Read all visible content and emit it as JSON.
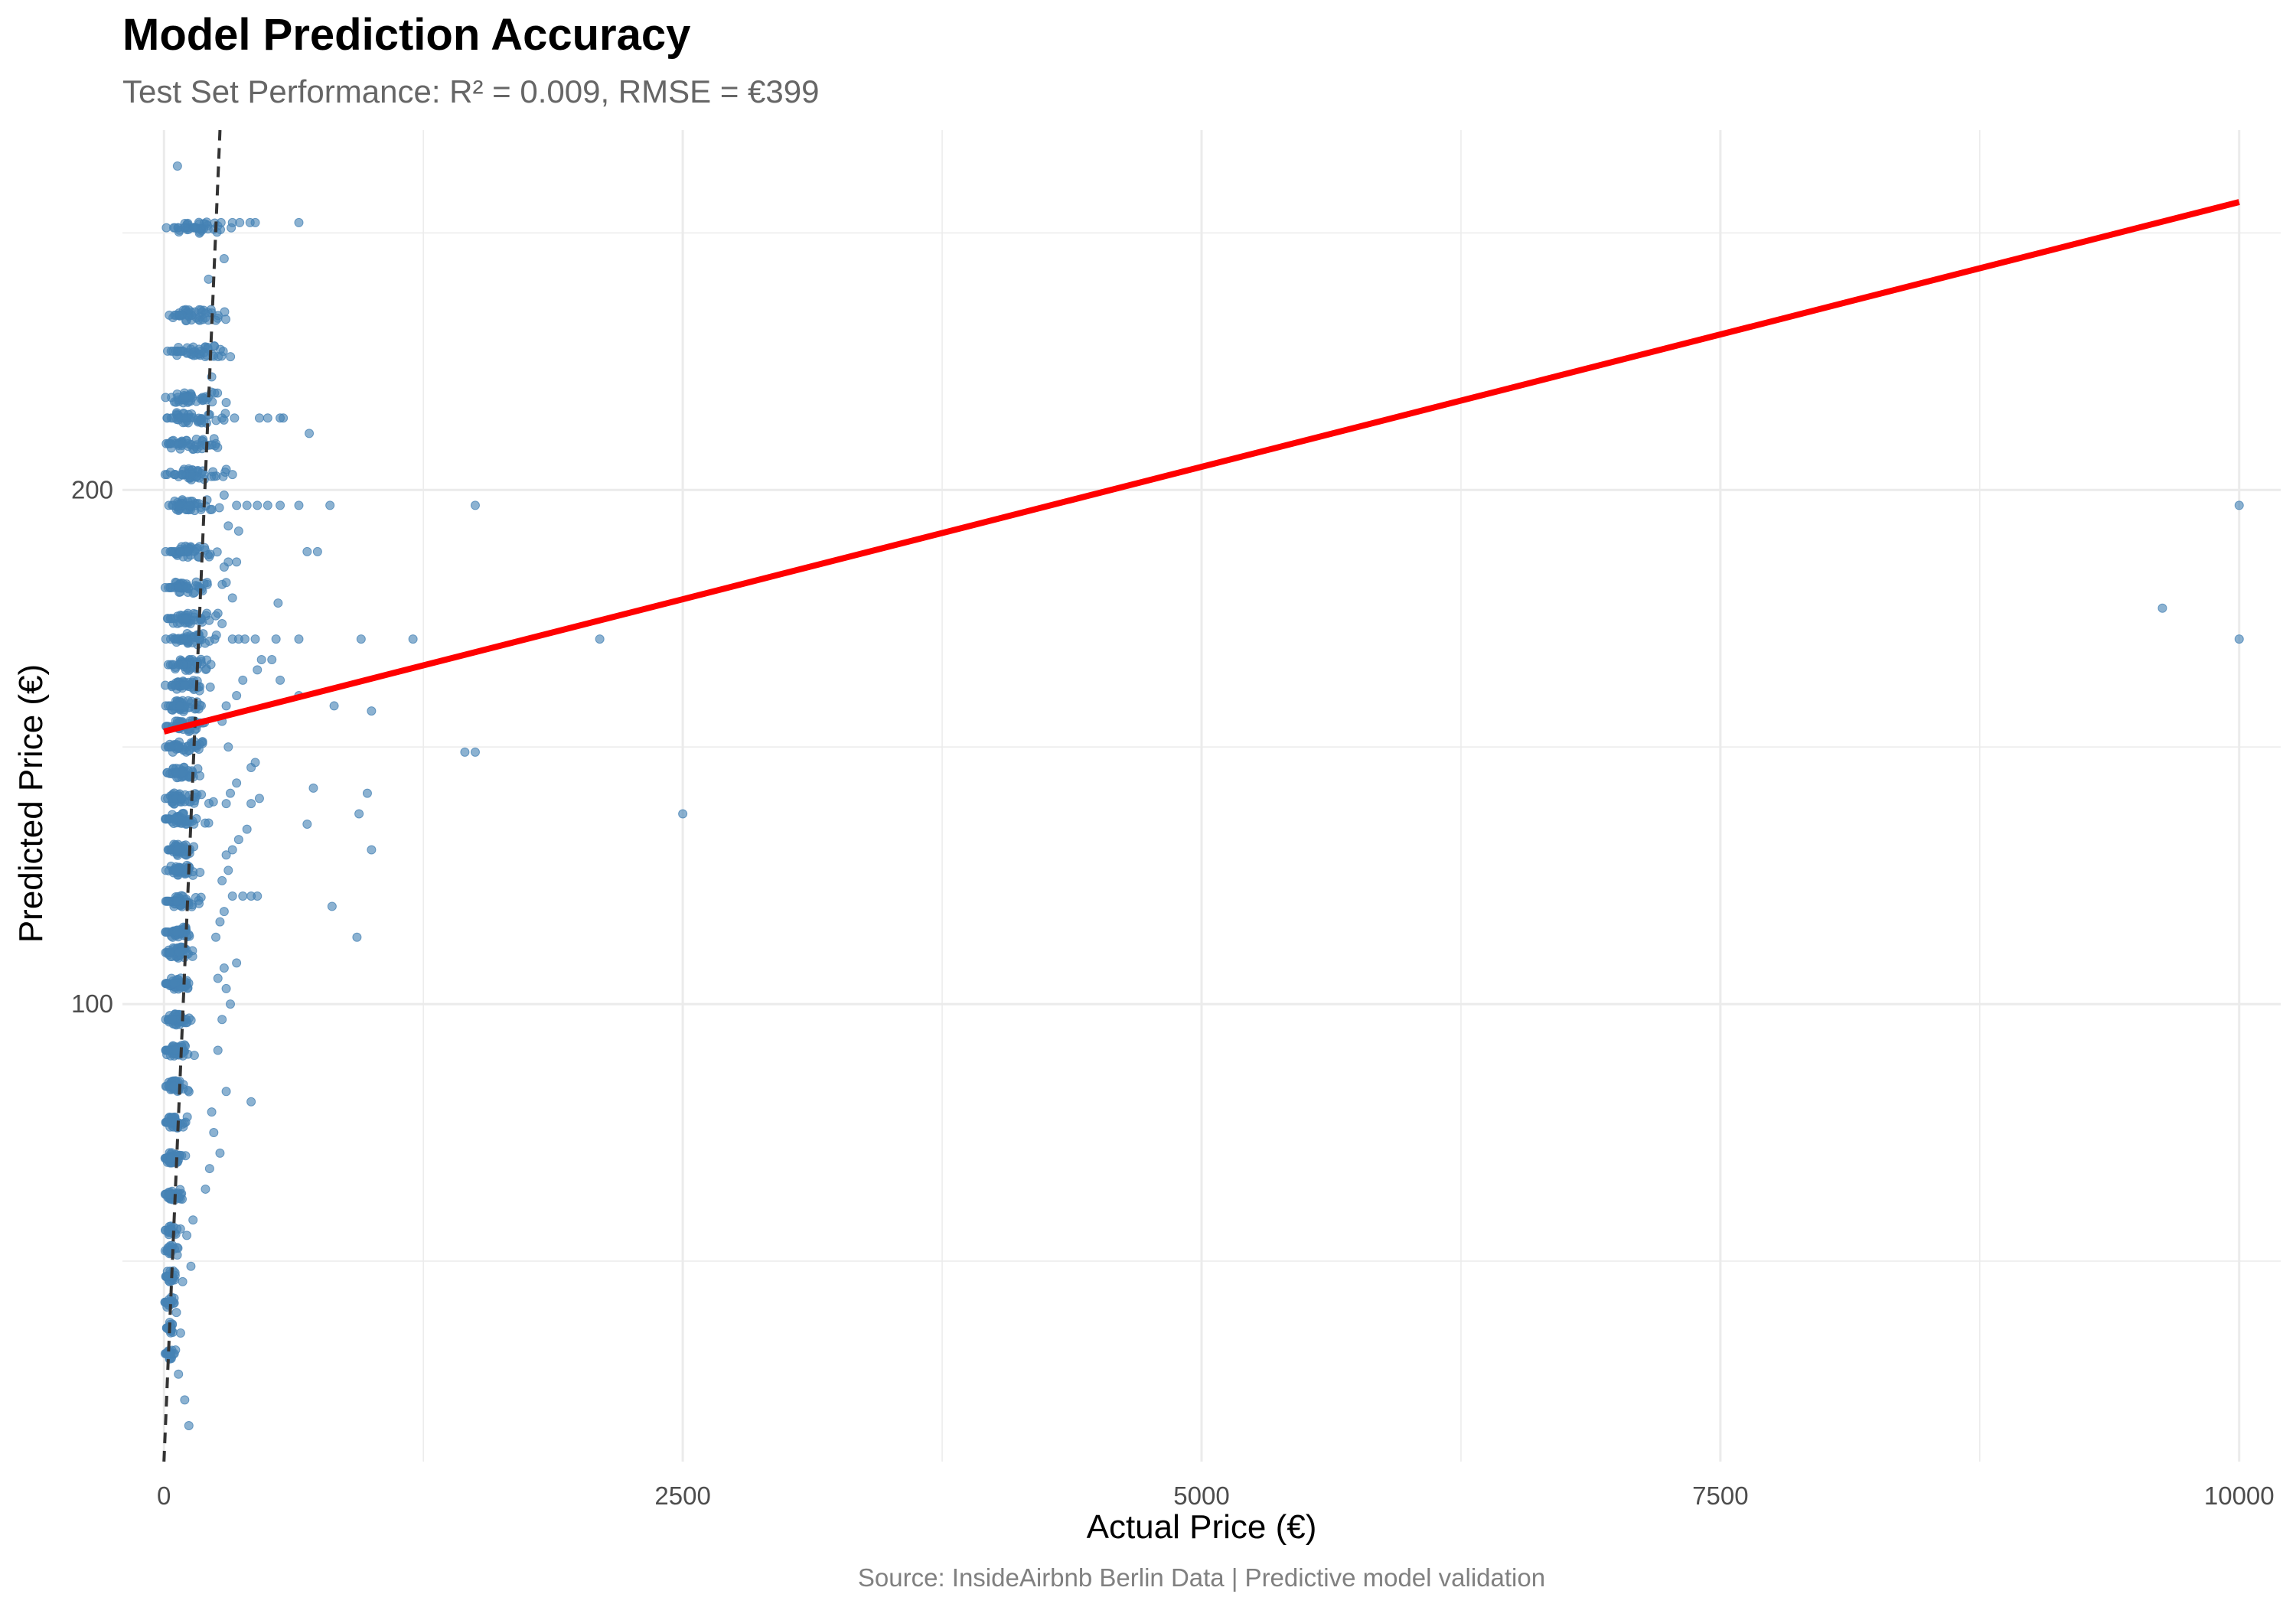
{
  "chart_data": {
    "type": "scatter",
    "title": "Model Prediction Accuracy",
    "subtitle": "Test Set Performance: R² = 0.009, RMSE = €399",
    "xlabel": "Actual Price (€)",
    "ylabel": "Predicted Price (€)",
    "caption": "Source: InsideAirbnb Berlin Data | Predictive model validation",
    "xlim": [
      -200,
      10200
    ],
    "ylim": [
      11,
      270
    ],
    "x_ticks": [
      0,
      2500,
      5000,
      7500,
      10000
    ],
    "x_tick_labels": [
      "0",
      "2500",
      "5000",
      "7500",
      "10000"
    ],
    "y_ticks": [
      100,
      200
    ],
    "y_tick_labels": [
      "100",
      "200"
    ],
    "grid": true,
    "legend": "none",
    "colors": {
      "points": "#4682B4",
      "fit_line": "#FF0000",
      "reference_line": "#333333",
      "grid": "#EBEBEB"
    },
    "reference_line": {
      "type": "identity",
      "style": "dashed",
      "points": [
        [
          0,
          11
        ],
        [
          270,
          270
        ]
      ]
    },
    "fit_line": {
      "type": "linear",
      "points": [
        [
          0,
          153
        ],
        [
          10000,
          256
        ]
      ]
    },
    "prediction_levels": [
      251,
      234,
      227,
      218,
      214,
      209,
      203,
      197,
      188,
      181,
      175,
      171,
      166,
      162,
      158,
      154,
      150,
      145,
      140,
      136,
      130,
      126,
      120,
      114,
      110,
      104,
      97,
      91,
      84,
      77,
      70,
      63,
      56,
      52,
      47,
      42,
      37,
      32
    ],
    "series": [
      {
        "points": [
          [
            65,
            263
          ],
          [
            650,
            252
          ],
          [
            440,
            252
          ],
          [
            330,
            252
          ],
          [
            275,
            252
          ],
          [
            365,
            252
          ],
          [
            415,
            252
          ],
          [
            290,
            245
          ],
          [
            215,
            241
          ],
          [
            120,
            235
          ],
          [
            250,
            233
          ],
          [
            240,
            226
          ],
          [
            230,
            222
          ],
          [
            700,
            211
          ],
          [
            460,
            214
          ],
          [
            500,
            214
          ],
          [
            560,
            214
          ],
          [
            575,
            214
          ],
          [
            280,
            214
          ],
          [
            340,
            214
          ],
          [
            300,
            217
          ],
          [
            250,
            209
          ],
          [
            300,
            204
          ],
          [
            330,
            203
          ],
          [
            1500,
            197
          ],
          [
            800,
            197
          ],
          [
            650,
            197
          ],
          [
            560,
            197
          ],
          [
            500,
            197
          ],
          [
            450,
            197
          ],
          [
            400,
            197
          ],
          [
            350,
            197
          ],
          [
            290,
            199
          ],
          [
            310,
            193
          ],
          [
            690,
            188
          ],
          [
            740,
            188
          ],
          [
            360,
            192
          ],
          [
            350,
            186
          ],
          [
            310,
            186
          ],
          [
            290,
            185
          ],
          [
            300,
            182
          ],
          [
            330,
            179
          ],
          [
            280,
            174
          ],
          [
            550,
            178
          ],
          [
            2100,
            171
          ],
          [
            1200,
            171
          ],
          [
            950,
            171
          ],
          [
            650,
            171
          ],
          [
            540,
            171
          ],
          [
            440,
            171
          ],
          [
            390,
            171
          ],
          [
            360,
            171
          ],
          [
            330,
            171
          ],
          [
            260,
            176
          ],
          [
            470,
            167
          ],
          [
            520,
            167
          ],
          [
            560,
            163
          ],
          [
            450,
            165
          ],
          [
            380,
            163
          ],
          [
            350,
            160
          ],
          [
            820,
            158
          ],
          [
            1000,
            157
          ],
          [
            650,
            160
          ],
          [
            300,
            158
          ],
          [
            280,
            155
          ],
          [
            310,
            150
          ],
          [
            1500,
            149
          ],
          [
            1450,
            149
          ],
          [
            440,
            147
          ],
          [
            420,
            146
          ],
          [
            350,
            143
          ],
          [
            320,
            141
          ],
          [
            300,
            139
          ],
          [
            720,
            142
          ],
          [
            980,
            141
          ],
          [
            460,
            140
          ],
          [
            420,
            139
          ],
          [
            2500,
            137
          ],
          [
            940,
            137
          ],
          [
            690,
            135
          ],
          [
            400,
            134
          ],
          [
            360,
            132
          ],
          [
            1000,
            130
          ],
          [
            330,
            130
          ],
          [
            300,
            129
          ],
          [
            310,
            126
          ],
          [
            280,
            124
          ],
          [
            450,
            121
          ],
          [
            420,
            121
          ],
          [
            380,
            121
          ],
          [
            330,
            121
          ],
          [
            810,
            119
          ],
          [
            290,
            118
          ],
          [
            930,
            113
          ],
          [
            270,
            116
          ],
          [
            250,
            113
          ],
          [
            290,
            107
          ],
          [
            350,
            108
          ],
          [
            260,
            105
          ],
          [
            300,
            103
          ],
          [
            320,
            100
          ],
          [
            280,
            97
          ],
          [
            260,
            91
          ],
          [
            420,
            81
          ],
          [
            300,
            83
          ],
          [
            230,
            79
          ],
          [
            240,
            75
          ],
          [
            270,
            71
          ],
          [
            220,
            68
          ],
          [
            200,
            64
          ],
          [
            140,
            58
          ],
          [
            110,
            55
          ],
          [
            130,
            49
          ],
          [
            90,
            46
          ],
          [
            60,
            40
          ],
          [
            80,
            36
          ],
          [
            50,
            32
          ],
          [
            70,
            28
          ],
          [
            100,
            23
          ],
          [
            120,
            18
          ],
          [
            10000,
            197
          ],
          [
            10000,
            171
          ],
          [
            9630,
            177
          ]
        ]
      }
    ]
  }
}
